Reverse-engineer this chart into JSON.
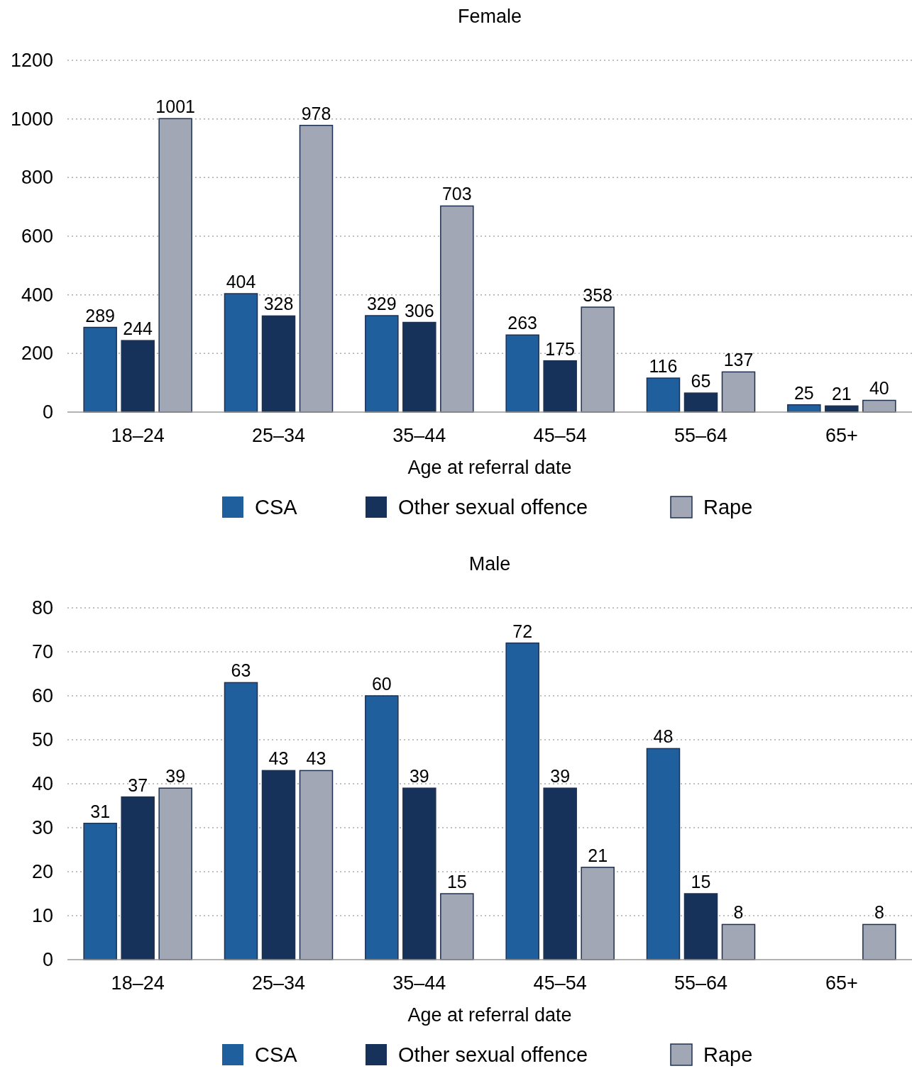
{
  "chart_data": [
    {
      "type": "bar",
      "title": "Female",
      "xlabel": "Age at referral date",
      "categories": [
        "18–24",
        "25–34",
        "35–44",
        "45–54",
        "55–64",
        "65+"
      ],
      "series": [
        {
          "name": "CSA",
          "color": "#1f5f9e",
          "values": [
            289,
            404,
            329,
            263,
            116,
            25
          ]
        },
        {
          "name": "Other sexual offence",
          "color": "#17325a",
          "values": [
            244,
            328,
            306,
            175,
            65,
            21
          ]
        },
        {
          "name": "Rape",
          "color": "#a2a7b5",
          "values": [
            1001,
            978,
            703,
            358,
            137,
            40
          ]
        }
      ],
      "ylim": [
        0,
        1200
      ],
      "yticks": [
        0,
        200,
        400,
        600,
        800,
        1000,
        1200
      ],
      "grid": "y",
      "legend": "bottom",
      "data_labels": true
    },
    {
      "type": "bar",
      "title": "Male",
      "xlabel": "Age at referral date",
      "categories": [
        "18–24",
        "25–34",
        "35–44",
        "45–54",
        "55–64",
        "65+"
      ],
      "series": [
        {
          "name": "CSA",
          "color": "#1f5f9e",
          "values": [
            31,
            63,
            60,
            72,
            48,
            null
          ]
        },
        {
          "name": "Other sexual offence",
          "color": "#17325a",
          "values": [
            37,
            43,
            39,
            39,
            15,
            null
          ]
        },
        {
          "name": "Rape",
          "color": "#a2a7b5",
          "values": [
            39,
            43,
            15,
            21,
            8,
            8
          ]
        }
      ],
      "ylim": [
        0,
        80
      ],
      "yticks": [
        0,
        10,
        20,
        30,
        40,
        50,
        60,
        70,
        80
      ],
      "grid": "y",
      "legend": "bottom",
      "data_labels": true
    }
  ]
}
